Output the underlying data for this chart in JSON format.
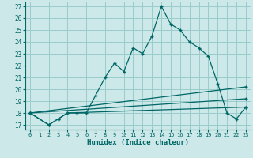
{
  "xlabel": "Humidex (Indice chaleur)",
  "background_color": "#cce8e8",
  "grid_color": "#99cccc",
  "line_color": "#006666",
  "xlim": [
    -0.5,
    23.5
  ],
  "ylim": [
    16.6,
    27.4
  ],
  "xticks": [
    0,
    1,
    2,
    3,
    4,
    5,
    6,
    7,
    8,
    9,
    10,
    11,
    12,
    13,
    14,
    15,
    16,
    17,
    18,
    19,
    20,
    21,
    22,
    23
  ],
  "yticks": [
    17,
    18,
    19,
    20,
    21,
    22,
    23,
    24,
    25,
    26,
    27
  ],
  "lines": [
    {
      "x": [
        0,
        2,
        3,
        4,
        5,
        6,
        7,
        8,
        9,
        10,
        11,
        12,
        13,
        14,
        15,
        16,
        17,
        18,
        19,
        20,
        21,
        22,
        23
      ],
      "y": [
        18,
        17,
        17.5,
        18,
        18,
        18,
        19.5,
        21,
        22.2,
        21.5,
        23.5,
        23,
        24.5,
        27,
        25.5,
        25,
        24,
        23.5,
        22.8,
        20.5,
        18,
        17.5,
        18.5
      ]
    },
    {
      "x": [
        0,
        2,
        3,
        4,
        23
      ],
      "y": [
        18,
        17,
        17.5,
        18,
        18.5
      ]
    },
    {
      "x": [
        0,
        23
      ],
      "y": [
        18,
        20.2
      ]
    },
    {
      "x": [
        0,
        23
      ],
      "y": [
        18,
        19.2
      ]
    }
  ]
}
